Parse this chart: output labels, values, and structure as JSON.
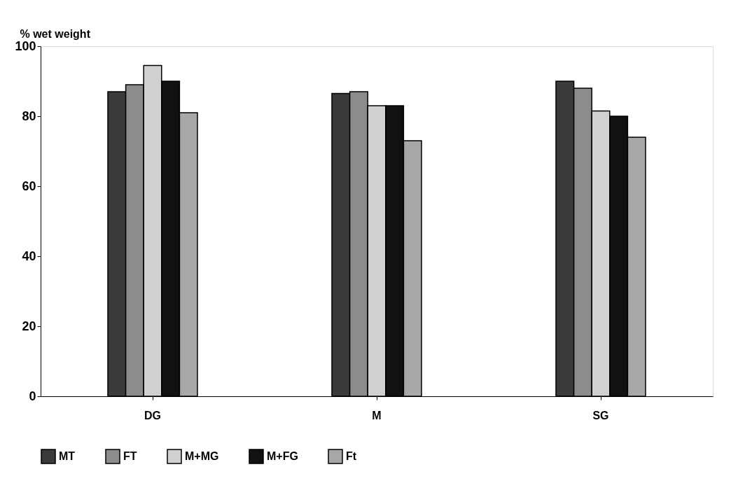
{
  "chart_data": {
    "type": "bar",
    "ylabel": "% wet weight",
    "categories": [
      "DG",
      "M",
      "SG"
    ],
    "series": [
      {
        "name": "MT",
        "color": "#3a3a3a",
        "values": [
          87,
          86.5,
          90
        ]
      },
      {
        "name": "FT",
        "color": "#8c8c8c",
        "values": [
          89,
          87,
          88
        ]
      },
      {
        "name": "M+MG",
        "color": "#d0d0d0",
        "values": [
          94.5,
          83,
          81.5
        ]
      },
      {
        "name": "M+FG",
        "color": "#111111",
        "values": [
          90,
          83,
          80
        ]
      },
      {
        "name": "Ft",
        "color": "#a8a8a8",
        "values": [
          81,
          73,
          74
        ]
      }
    ],
    "ylim": [
      0,
      100
    ],
    "yticks": [
      0,
      20,
      40,
      60,
      80,
      100
    ],
    "grid": false,
    "legend": "bottom"
  }
}
